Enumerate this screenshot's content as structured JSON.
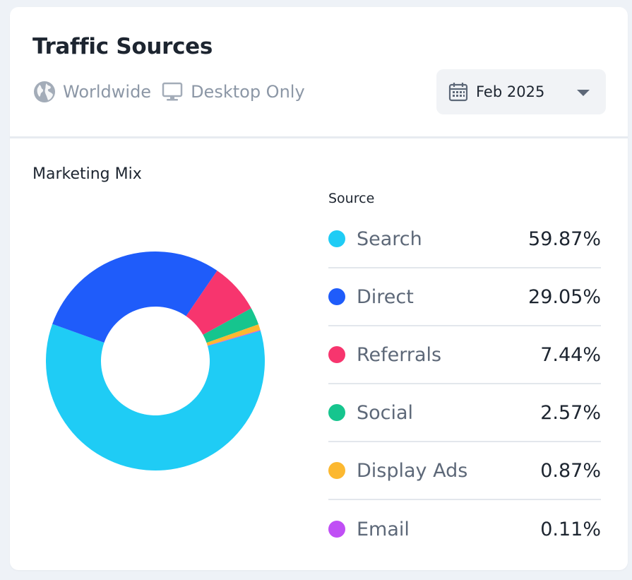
{
  "header": {
    "title": "Traffic Sources",
    "region": "Worldwide",
    "device": "Desktop Only",
    "date": "Feb 2025"
  },
  "section": {
    "title": "Marketing Mix",
    "legend_header": "Source"
  },
  "colors": {
    "search": "#1fccf5",
    "direct": "#1f5cfa",
    "referrals": "#f7356e",
    "social": "#16c58e",
    "display_ads": "#fcb830",
    "email": "#c04ff5"
  },
  "chart_data": {
    "type": "pie",
    "title": "Marketing Mix",
    "categories": [
      "Search",
      "Direct",
      "Referrals",
      "Social",
      "Display Ads",
      "Email"
    ],
    "values": [
      59.87,
      29.05,
      7.44,
      2.57,
      0.87,
      0.11
    ],
    "unit": "%"
  },
  "sources": [
    {
      "name": "Search",
      "value": "59.87%",
      "color": "#1fccf5"
    },
    {
      "name": "Direct",
      "value": "29.05%",
      "color": "#1f5cfa"
    },
    {
      "name": "Referrals",
      "value": "7.44%",
      "color": "#f7356e"
    },
    {
      "name": "Social",
      "value": "2.57%",
      "color": "#16c58e"
    },
    {
      "name": "Display Ads",
      "value": "0.87%",
      "color": "#fcb830"
    },
    {
      "name": "Email",
      "value": "0.11%",
      "color": "#c04ff5"
    }
  ]
}
